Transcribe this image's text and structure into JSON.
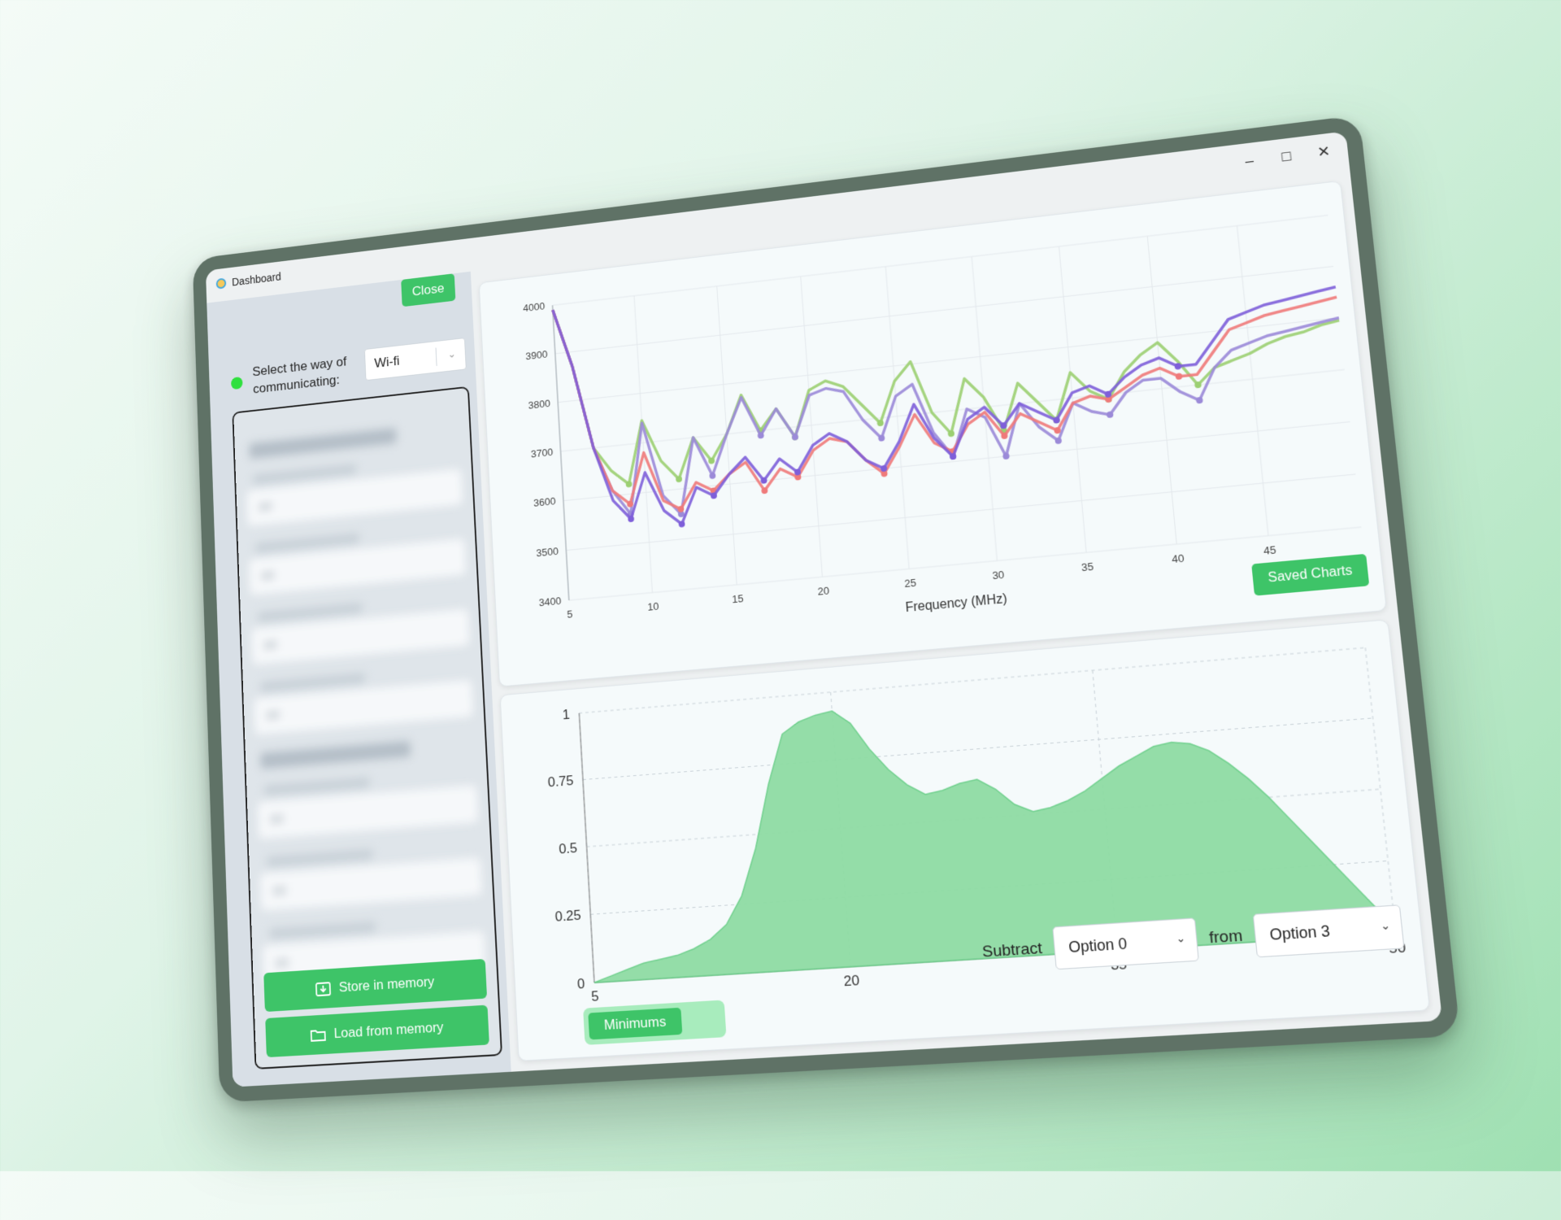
{
  "window": {
    "title": "Dashboard",
    "minimize_icon": "minimize-icon",
    "maximize_icon": "maximize-icon",
    "close_icon": "close-icon"
  },
  "sidebar": {
    "close_label": "Close",
    "status_color": "#2fe03e",
    "comm_label": "Select the way of communicating:",
    "comm_value": "Wi-fi",
    "store_label": "Store in memory",
    "load_label": "Load from memory"
  },
  "top_chart": {
    "saved_charts_label": "Saved Charts"
  },
  "bottom_chart": {
    "minimums_label": "Minimums",
    "subtract_label": "Subtract",
    "from_label": "from",
    "option_a": "Option 0",
    "option_b": "Option 3"
  },
  "colors": {
    "accent": "#3ec468",
    "area_fill": "#8fdca4"
  },
  "chart_data": [
    {
      "type": "line",
      "xlabel": "Frequency (MHz)",
      "ylabel": "",
      "xlim": [
        5,
        50
      ],
      "ylim": [
        3400,
        4000
      ],
      "xticks": [
        5,
        10,
        15,
        20,
        25,
        30,
        35,
        40,
        45
      ],
      "yticks": [
        3400,
        3500,
        3600,
        3700,
        3800,
        3900,
        4000
      ],
      "grid": true,
      "x": [
        5,
        6,
        7,
        8,
        9,
        10,
        11,
        12,
        13,
        14,
        15,
        16,
        17,
        18,
        19,
        20,
        21,
        22,
        23,
        24,
        25,
        26,
        27,
        28,
        29,
        30,
        31,
        32,
        33,
        34,
        35,
        36,
        37,
        38,
        39,
        40,
        41,
        42,
        43,
        44,
        45,
        46,
        47,
        48,
        49,
        50
      ],
      "series": [
        {
          "color": "#9ccf72",
          "values": [
            3990,
            3870,
            3700,
            3650,
            3620,
            3745,
            3660,
            3620,
            3700,
            3650,
            3700,
            3775,
            3700,
            3740,
            3680,
            3770,
            3785,
            3770,
            3730,
            3690,
            3770,
            3805,
            3700,
            3655,
            3760,
            3720,
            3650,
            3740,
            3700,
            3660,
            3750,
            3710,
            3690,
            3740,
            3770,
            3790,
            3750,
            3700,
            3730,
            3740,
            3750,
            3765,
            3775,
            3780,
            3790,
            3795
          ]
        },
        {
          "color": "#9b8ad8",
          "values": [
            3990,
            3870,
            3700,
            3610,
            3560,
            3740,
            3590,
            3550,
            3700,
            3620,
            3700,
            3770,
            3690,
            3740,
            3680,
            3760,
            3770,
            3760,
            3700,
            3660,
            3740,
            3760,
            3660,
            3610,
            3700,
            3680,
            3600,
            3700,
            3650,
            3620,
            3690,
            3670,
            3660,
            3700,
            3720,
            3720,
            3690,
            3670,
            3730,
            3760,
            3770,
            3780,
            3785,
            3790,
            3795,
            3800
          ]
        },
        {
          "color": "#ef7a7a",
          "values": [
            3990,
            3870,
            3700,
            3610,
            3580,
            3680,
            3580,
            3560,
            3610,
            3590,
            3620,
            3640,
            3580,
            3620,
            3600,
            3650,
            3670,
            3660,
            3620,
            3590,
            3640,
            3700,
            3640,
            3620,
            3670,
            3690,
            3640,
            3680,
            3660,
            3640,
            3690,
            3700,
            3690,
            3710,
            3730,
            3740,
            3720,
            3720,
            3760,
            3800,
            3810,
            3820,
            3825,
            3830,
            3835,
            3840
          ]
        },
        {
          "color": "#7e5fd9",
          "values": [
            3990,
            3870,
            3700,
            3590,
            3550,
            3640,
            3560,
            3530,
            3600,
            3580,
            3620,
            3650,
            3600,
            3640,
            3610,
            3660,
            3680,
            3660,
            3620,
            3600,
            3650,
            3720,
            3650,
            3610,
            3680,
            3700,
            3660,
            3700,
            3680,
            3660,
            3710,
            3720,
            3700,
            3730,
            3750,
            3760,
            3740,
            3740,
            3780,
            3820,
            3830,
            3840,
            3845,
            3850,
            3855,
            3860
          ]
        }
      ]
    },
    {
      "type": "area",
      "xlabel": "",
      "ylabel": "",
      "xlim": [
        5,
        50
      ],
      "ylim": [
        0,
        1
      ],
      "xticks": [
        5,
        20,
        35,
        50
      ],
      "yticks": [
        0,
        0.25,
        0.5,
        0.75,
        1
      ],
      "grid": true,
      "x": [
        5,
        6,
        7,
        8,
        9,
        10,
        11,
        12,
        13,
        14,
        15,
        16,
        17,
        18,
        19,
        20,
        21,
        22,
        23,
        24,
        25,
        26,
        27,
        28,
        29,
        30,
        31,
        32,
        33,
        34,
        35,
        36,
        37,
        38,
        39,
        40,
        41,
        42,
        43,
        44,
        45,
        46,
        47,
        48,
        49,
        50
      ],
      "values": [
        0,
        0.02,
        0.04,
        0.06,
        0.07,
        0.08,
        0.1,
        0.13,
        0.18,
        0.28,
        0.45,
        0.68,
        0.86,
        0.9,
        0.92,
        0.93,
        0.88,
        0.78,
        0.7,
        0.64,
        0.6,
        0.61,
        0.63,
        0.64,
        0.6,
        0.54,
        0.51,
        0.52,
        0.54,
        0.57,
        0.61,
        0.65,
        0.68,
        0.71,
        0.72,
        0.71,
        0.68,
        0.63,
        0.57,
        0.5,
        0.42,
        0.34,
        0.26,
        0.18,
        0.1,
        0.04
      ]
    }
  ]
}
